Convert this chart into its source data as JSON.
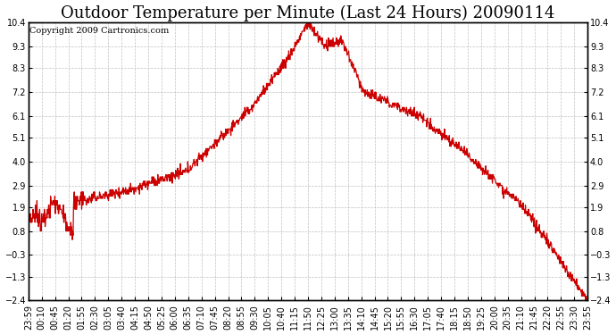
{
  "title": "Outdoor Temperature per Minute (Last 24 Hours) 20090114",
  "copyright_text": "Copyright 2009 Cartronics.com",
  "line_color": "#cc0000",
  "background_color": "#ffffff",
  "grid_color": "#c0c0c0",
  "ylim": [
    -2.4,
    10.4
  ],
  "yticks": [
    10.4,
    9.3,
    8.3,
    7.2,
    6.1,
    5.1,
    4.0,
    2.9,
    1.9,
    0.8,
    -0.3,
    -1.3,
    -2.4
  ],
  "xtick_labels": [
    "23:59",
    "00:10",
    "00:45",
    "01:20",
    "01:55",
    "02:30",
    "03:05",
    "03:40",
    "04:15",
    "04:50",
    "05:25",
    "06:00",
    "06:35",
    "07:10",
    "07:45",
    "08:20",
    "08:55",
    "09:30",
    "10:05",
    "10:40",
    "11:15",
    "11:50",
    "12:25",
    "13:00",
    "13:35",
    "14:10",
    "14:45",
    "15:20",
    "15:55",
    "16:30",
    "17:05",
    "17:40",
    "18:15",
    "18:50",
    "19:25",
    "20:00",
    "20:35",
    "21:10",
    "21:45",
    "22:20",
    "22:55",
    "23:30",
    "23:55"
  ],
  "title_fontsize": 13,
  "tick_fontsize": 7,
  "copyright_fontsize": 7
}
